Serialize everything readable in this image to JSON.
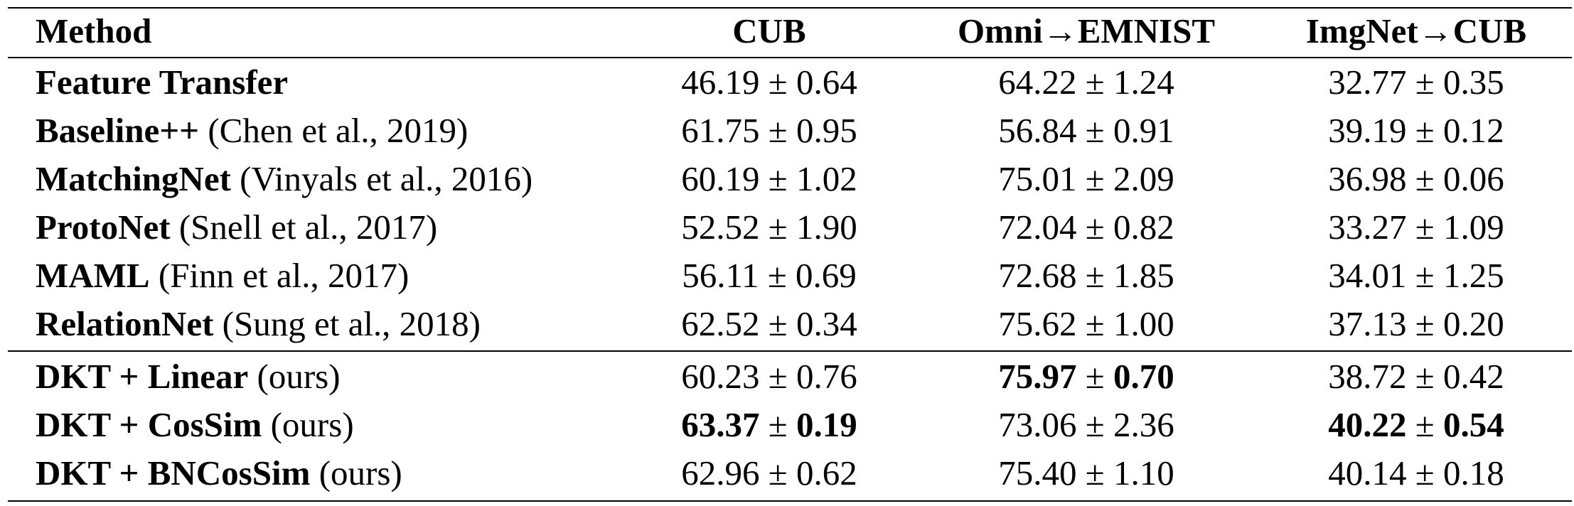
{
  "table": {
    "columns": [
      "Method",
      "CUB",
      "Omni→EMNIST",
      "ImgNet→CUB"
    ],
    "sections": [
      [
        {
          "name": "Feature Transfer",
          "cells": [
            {
              "mean": "46.19",
              "sign": "±",
              "std": "0.64"
            },
            {
              "mean": "64.22",
              "sign": "±",
              "std": "1.24"
            },
            {
              "mean": "32.77",
              "sign": "±",
              "std": "0.35"
            }
          ]
        },
        {
          "name": "Baseline++",
          "cite": "(Chen et al., 2019)",
          "cells": [
            {
              "mean": "61.75",
              "sign": "±",
              "std": "0.95"
            },
            {
              "mean": "56.84",
              "sign": "±",
              "std": "0.91"
            },
            {
              "mean": "39.19",
              "sign": "±",
              "std": "0.12"
            }
          ]
        },
        {
          "name": "MatchingNet",
          "cite": "(Vinyals et al., 2016)",
          "cells": [
            {
              "mean": "60.19",
              "sign": "±",
              "std": "1.02"
            },
            {
              "mean": "75.01",
              "sign": "±",
              "std": "2.09"
            },
            {
              "mean": "36.98",
              "sign": "±",
              "std": "0.06"
            }
          ]
        },
        {
          "name": "ProtoNet",
          "cite": "(Snell et al., 2017)",
          "cells": [
            {
              "mean": "52.52",
              "sign": "±",
              "std": "1.90"
            },
            {
              "mean": "72.04",
              "sign": "±",
              "std": "0.82"
            },
            {
              "mean": "33.27",
              "sign": "±",
              "std": "1.09"
            }
          ]
        },
        {
          "name": "MAML",
          "cite": "(Finn et al., 2017)",
          "cells": [
            {
              "mean": "56.11",
              "sign": "±",
              "std": "0.69"
            },
            {
              "mean": "72.68",
              "sign": "±",
              "std": "1.85"
            },
            {
              "mean": "34.01",
              "sign": "±",
              "std": "1.25"
            }
          ]
        },
        {
          "name": "RelationNet",
          "cite": "(Sung et al., 2018)",
          "cells": [
            {
              "mean": "62.52",
              "sign": "±",
              "std": "0.34"
            },
            {
              "mean": "75.62",
              "sign": "±",
              "std": "1.00"
            },
            {
              "mean": "37.13",
              "sign": "±",
              "std": "0.20"
            }
          ]
        }
      ],
      [
        {
          "name": "DKT + Linear",
          "cite": "(ours)",
          "cells": [
            {
              "mean": "60.23",
              "sign": "±",
              "std": "0.76"
            },
            {
              "mean": "75.97",
              "sign": "±",
              "std": "0.70",
              "bold": true
            },
            {
              "mean": "38.72",
              "sign": "±",
              "std": "0.42"
            }
          ]
        },
        {
          "name": "DKT + CosSim",
          "cite": "(ours)",
          "cells": [
            {
              "mean": "63.37",
              "sign": "±",
              "std": "0.19",
              "bold": true
            },
            {
              "mean": "73.06",
              "sign": "±",
              "std": "2.36"
            },
            {
              "mean": "40.22",
              "sign": "±",
              "std": "0.54",
              "bold": true
            }
          ]
        },
        {
          "name": "DKT + BNCosSim",
          "cite": "(ours)",
          "cells": [
            {
              "mean": "62.96",
              "sign": "±",
              "std": "0.62"
            },
            {
              "mean": "75.40",
              "sign": "±",
              "std": "1.10"
            },
            {
              "mean": "40.14",
              "sign": "±",
              "std": "0.18"
            }
          ]
        }
      ]
    ]
  }
}
